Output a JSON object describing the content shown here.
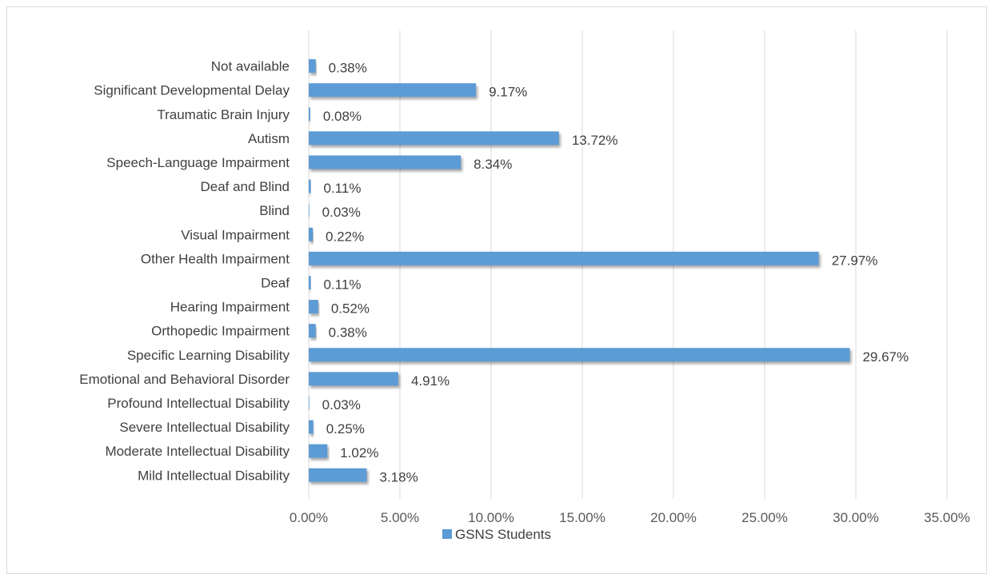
{
  "chart_data": {
    "type": "bar",
    "orientation": "horizontal",
    "title": "",
    "xlabel": "",
    "ylabel": "",
    "categories": [
      "Not available",
      "Significant Developmental Delay",
      "Traumatic Brain Injury",
      "Autism",
      "Speech-Language Impairment",
      "Deaf and Blind",
      "Blind",
      "Visual Impairment",
      "Other Health Impairment",
      "Deaf",
      "Hearing Impairment",
      "Orthopedic Impairment",
      "Specific Learning Disability",
      "Emotional and Behavioral Disorder",
      "Profound Intellectual Disability",
      "Severe Intellectual Disability",
      "Moderate Intellectual Disability",
      "Mild Intellectual Disability"
    ],
    "series": [
      {
        "name": "GSNS Students",
        "values": [
          0.38,
          9.17,
          0.08,
          13.72,
          8.34,
          0.11,
          0.03,
          0.22,
          27.97,
          0.11,
          0.52,
          0.38,
          29.67,
          4.91,
          0.03,
          0.25,
          1.02,
          3.18
        ],
        "data_labels": [
          "0.38%",
          "9.17%",
          "0.08%",
          "13.72%",
          "8.34%",
          "0.11%",
          "0.03%",
          "0.22%",
          "27.97%",
          "0.11%",
          "0.52%",
          "0.38%",
          "29.67%",
          "4.91%",
          "0.03%",
          "0.25%",
          "1.02%",
          "3.18%"
        ]
      }
    ],
    "xlim": [
      0,
      35
    ],
    "x_ticks": [
      0,
      5,
      10,
      15,
      20,
      25,
      30,
      35
    ],
    "x_tick_labels": [
      "0.00%",
      "5.00%",
      "10.00%",
      "15.00%",
      "20.00%",
      "25.00%",
      "30.00%",
      "35.00%"
    ],
    "grid": "vertical",
    "legend_position": "bottom",
    "colors": {
      "bar": "#5b9bd5",
      "grid": "#d9d9d9",
      "text": "#404040"
    }
  }
}
